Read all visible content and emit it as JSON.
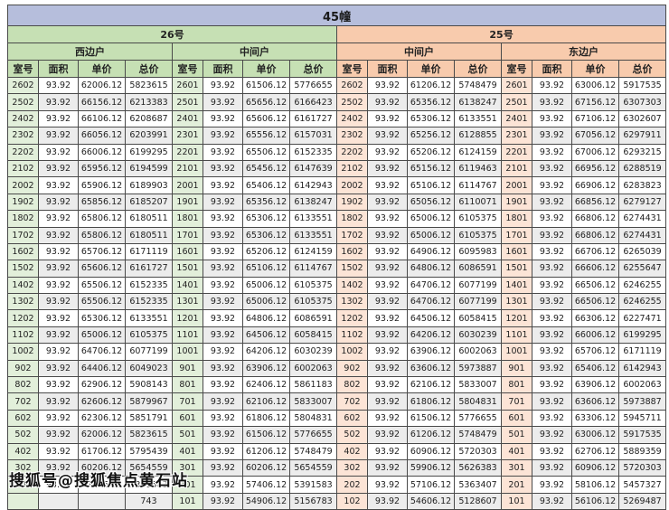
{
  "title": "45幢",
  "watermark": "搜狐号@搜狐焦点黄石站",
  "columns": [
    "室号",
    "面积",
    "单价",
    "总价"
  ],
  "colors": {
    "title_bg": "#b6bedc",
    "green": "#c6e0b4",
    "green_light": "#e2efda",
    "peach": "#f8cbad",
    "peach_light": "#fce4d6",
    "alt_row": "#ececec",
    "border": "#4a4a4a"
  },
  "buildings": [
    {
      "name": "26号",
      "theme": "green",
      "units": [
        {
          "name": "西边户",
          "rows": [
            [
              "2602",
              "93.92",
              "62006.12",
              "5823615"
            ],
            [
              "2502",
              "93.92",
              "66156.12",
              "6213383"
            ],
            [
              "2402",
              "93.92",
              "66106.12",
              "6208687"
            ],
            [
              "2302",
              "93.92",
              "66056.12",
              "6203991"
            ],
            [
              "2202",
              "93.92",
              "66006.12",
              "6199295"
            ],
            [
              "2102",
              "93.92",
              "65956.12",
              "6194599"
            ],
            [
              "2002",
              "93.92",
              "65906.12",
              "6189903"
            ],
            [
              "1902",
              "93.92",
              "65856.12",
              "6185207"
            ],
            [
              "1802",
              "93.92",
              "65806.12",
              "6180511"
            ],
            [
              "1702",
              "93.92",
              "65806.12",
              "6180511"
            ],
            [
              "1602",
              "93.92",
              "65706.12",
              "6171119"
            ],
            [
              "1502",
              "93.92",
              "65606.12",
              "6161727"
            ],
            [
              "1402",
              "93.92",
              "65506.12",
              "6152335"
            ],
            [
              "1302",
              "93.92",
              "65506.12",
              "6152335"
            ],
            [
              "1202",
              "93.92",
              "65306.12",
              "6133551"
            ],
            [
              "1102",
              "93.92",
              "65006.12",
              "6105375"
            ],
            [
              "1002",
              "93.92",
              "64706.12",
              "6077199"
            ],
            [
              "902",
              "93.92",
              "64406.12",
              "6049023"
            ],
            [
              "802",
              "93.92",
              "62906.12",
              "5908143"
            ],
            [
              "702",
              "93.92",
              "62606.12",
              "5879967"
            ],
            [
              "602",
              "93.92",
              "62306.12",
              "5851791"
            ],
            [
              "502",
              "93.92",
              "62006.12",
              "5823615"
            ],
            [
              "402",
              "93.92",
              "61706.12",
              "5795439"
            ],
            [
              "302",
              "93.92",
              "60206.12",
              "5654559"
            ],
            [
              "202",
              "93.92",
              "57406.12",
              "5391583"
            ],
            [
              "",
              "",
              "",
              "743"
            ]
          ]
        },
        {
          "name": "中间户",
          "rows": [
            [
              "2601",
              "93.92",
              "61506.12",
              "5776655"
            ],
            [
              "2501",
              "93.92",
              "65656.12",
              "6166423"
            ],
            [
              "2401",
              "93.92",
              "65606.12",
              "6161727"
            ],
            [
              "2301",
              "93.92",
              "65556.12",
              "6157031"
            ],
            [
              "2201",
              "93.92",
              "65506.12",
              "6152335"
            ],
            [
              "2101",
              "93.92",
              "65456.12",
              "6147639"
            ],
            [
              "2001",
              "93.92",
              "65406.12",
              "6142943"
            ],
            [
              "1901",
              "93.92",
              "65356.12",
              "6138247"
            ],
            [
              "1801",
              "93.92",
              "65306.12",
              "6133551"
            ],
            [
              "1701",
              "93.92",
              "65306.12",
              "6133551"
            ],
            [
              "1601",
              "93.92",
              "65206.12",
              "6124159"
            ],
            [
              "1501",
              "93.92",
              "65106.12",
              "6114767"
            ],
            [
              "1401",
              "93.92",
              "65006.12",
              "6105375"
            ],
            [
              "1301",
              "93.92",
              "65006.12",
              "6105375"
            ],
            [
              "1201",
              "93.92",
              "64806.12",
              "6086591"
            ],
            [
              "1101",
              "93.92",
              "64506.12",
              "6058415"
            ],
            [
              "1001",
              "93.92",
              "64206.12",
              "6030239"
            ],
            [
              "901",
              "93.92",
              "63906.12",
              "6002063"
            ],
            [
              "801",
              "93.92",
              "62406.12",
              "5861183"
            ],
            [
              "701",
              "93.92",
              "62106.12",
              "5833007"
            ],
            [
              "601",
              "93.92",
              "61806.12",
              "5804831"
            ],
            [
              "501",
              "93.92",
              "61506.12",
              "5776655"
            ],
            [
              "401",
              "93.92",
              "61206.12",
              "5748479"
            ],
            [
              "301",
              "93.92",
              "60206.12",
              "5654559"
            ],
            [
              "201",
              "93.92",
              "57406.12",
              "5391583"
            ],
            [
              "101",
              "93.92",
              "54906.12",
              "5156783"
            ]
          ]
        }
      ]
    },
    {
      "name": "25号",
      "theme": "peach",
      "units": [
        {
          "name": "中间户",
          "rows": [
            [
              "2602",
              "93.92",
              "61206.12",
              "5748479"
            ],
            [
              "2502",
              "93.92",
              "65356.12",
              "6138247"
            ],
            [
              "2402",
              "93.92",
              "65306.12",
              "6133551"
            ],
            [
              "2302",
              "93.92",
              "65256.12",
              "6128855"
            ],
            [
              "2202",
              "93.92",
              "65206.12",
              "6124159"
            ],
            [
              "2102",
              "93.92",
              "65156.12",
              "6119463"
            ],
            [
              "2002",
              "93.92",
              "65106.12",
              "6114767"
            ],
            [
              "1902",
              "93.92",
              "65056.12",
              "6110071"
            ],
            [
              "1802",
              "93.92",
              "65006.12",
              "6105375"
            ],
            [
              "1702",
              "93.92",
              "65006.12",
              "6105375"
            ],
            [
              "1602",
              "93.92",
              "64906.12",
              "6095983"
            ],
            [
              "1502",
              "93.92",
              "64806.12",
              "6086591"
            ],
            [
              "1402",
              "93.92",
              "64706.12",
              "6077199"
            ],
            [
              "1302",
              "93.92",
              "64706.12",
              "6077199"
            ],
            [
              "1202",
              "93.92",
              "64506.12",
              "6058415"
            ],
            [
              "1102",
              "93.92",
              "64206.12",
              "6030239"
            ],
            [
              "1002",
              "93.92",
              "63906.12",
              "6002063"
            ],
            [
              "902",
              "93.92",
              "63606.12",
              "5973887"
            ],
            [
              "802",
              "93.92",
              "62106.12",
              "5833007"
            ],
            [
              "702",
              "93.92",
              "61806.12",
              "5804831"
            ],
            [
              "602",
              "93.92",
              "61506.12",
              "5776655"
            ],
            [
              "502",
              "93.92",
              "61206.12",
              "5748479"
            ],
            [
              "402",
              "93.92",
              "60906.12",
              "5720303"
            ],
            [
              "302",
              "93.92",
              "59906.12",
              "5626383"
            ],
            [
              "202",
              "93.92",
              "57106.12",
              "5363407"
            ],
            [
              "102",
              "93.92",
              "54606.12",
              "5128607"
            ]
          ]
        },
        {
          "name": "东边户",
          "rows": [
            [
              "2601",
              "93.92",
              "63006.12",
              "5917535"
            ],
            [
              "2501",
              "93.92",
              "67156.12",
              "6307303"
            ],
            [
              "2401",
              "93.92",
              "67106.12",
              "6302607"
            ],
            [
              "2301",
              "93.92",
              "67056.12",
              "6297911"
            ],
            [
              "2201",
              "93.92",
              "67006.12",
              "6293215"
            ],
            [
              "2101",
              "93.92",
              "66956.12",
              "6288519"
            ],
            [
              "2001",
              "93.92",
              "66906.12",
              "6283823"
            ],
            [
              "1901",
              "93.92",
              "66856.12",
              "6279127"
            ],
            [
              "1801",
              "93.92",
              "66806.12",
              "6274431"
            ],
            [
              "1701",
              "93.92",
              "66806.12",
              "6274431"
            ],
            [
              "1601",
              "93.92",
              "66706.12",
              "6265039"
            ],
            [
              "1501",
              "93.92",
              "66606.12",
              "6255647"
            ],
            [
              "1401",
              "93.92",
              "66506.12",
              "6246255"
            ],
            [
              "1301",
              "93.92",
              "66506.12",
              "6246255"
            ],
            [
              "1201",
              "93.92",
              "66306.12",
              "6227471"
            ],
            [
              "1101",
              "93.92",
              "66006.12",
              "6199295"
            ],
            [
              "1001",
              "93.92",
              "65706.12",
              "6171119"
            ],
            [
              "901",
              "93.92",
              "65406.12",
              "6142943"
            ],
            [
              "801",
              "93.92",
              "63906.12",
              "6002063"
            ],
            [
              "701",
              "93.92",
              "63606.12",
              "5973887"
            ],
            [
              "601",
              "93.92",
              "63306.12",
              "5945711"
            ],
            [
              "501",
              "93.92",
              "63006.12",
              "5917535"
            ],
            [
              "401",
              "93.92",
              "62706.12",
              "5889359"
            ],
            [
              "301",
              "93.92",
              "60906.12",
              "5720303"
            ],
            [
              "201",
              "93.92",
              "58106.12",
              "5457327"
            ],
            [
              "101",
              "93.92",
              "56106.12",
              "5269487"
            ]
          ]
        }
      ]
    }
  ]
}
